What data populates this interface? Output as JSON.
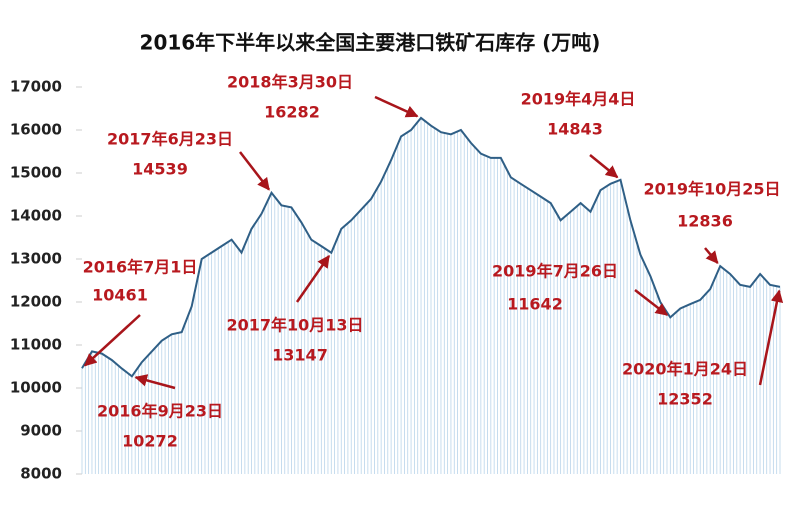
{
  "chart_data": {
    "type": "line",
    "title": "2016年下半年以来全国主要港口铁矿石库存 (万吨)",
    "values": [
      10461,
      10850,
      10800,
      10650,
      10450,
      10272,
      10600,
      10850,
      11100,
      11250,
      11300,
      11900,
      13000,
      13150,
      13300,
      13450,
      13150,
      13700,
      14050,
      14539,
      14250,
      14200,
      13850,
      13450,
      13300,
      13147,
      13700,
      13900,
      14150,
      14400,
      14800,
      15300,
      15850,
      16000,
      16282,
      16100,
      15950,
      15900,
      16000,
      15700,
      15450,
      15350,
      15350,
      14900,
      14750,
      14600,
      14450,
      14300,
      13900,
      14100,
      14300,
      14100,
      14600,
      14750,
      14843,
      13900,
      13100,
      12600,
      12000,
      11642,
      11850,
      11950,
      12050,
      12300,
      12836,
      12650,
      12400,
      12350,
      12650,
      12400,
      12352
    ],
    "color": "#2f5f86",
    "drop_line_color": "#b9d4ea",
    "ylim": [
      8000,
      17000
    ],
    "yticks": [
      8000,
      9000,
      10000,
      11000,
      12000,
      13000,
      14000,
      15000,
      16000,
      17000
    ],
    "annotations": [
      {
        "label": "2016年7月1日",
        "value": 10461
      },
      {
        "label": "2016年9月23日",
        "value": 10272
      },
      {
        "label": "2017年6月23日",
        "value": 14539
      },
      {
        "label": "2017年10月13日",
        "value": 13147
      },
      {
        "label": "2018年3月30日",
        "value": 16282
      },
      {
        "label": "2019年4月4日",
        "value": 14843
      },
      {
        "label": "2019年10月25日",
        "value": 12836
      },
      {
        "label": "2019年7月26日",
        "value": 11642
      },
      {
        "label": "2020年1月24日",
        "value": 12352
      }
    ],
    "annotation_color": "#b8191f"
  }
}
